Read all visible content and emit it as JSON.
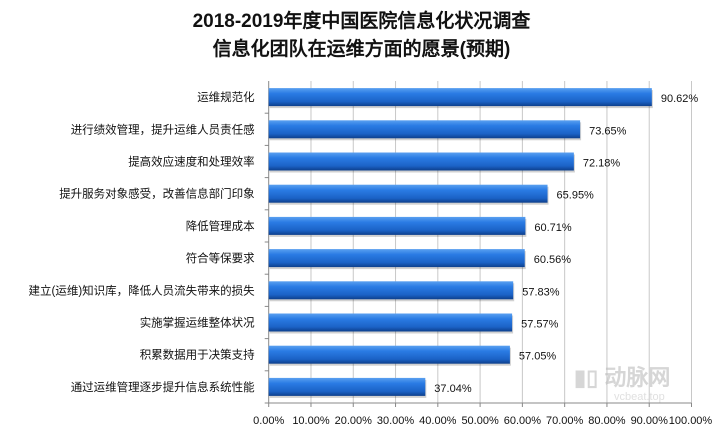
{
  "chart_data": {
    "type": "bar",
    "orientation": "horizontal",
    "title": "2018-2019年度中国医院信息化状况调查",
    "subtitle": "信息化团队在运维方面的愿景(预期)",
    "categories": [
      "运维规范化",
      "进行绩效管理，提升运维人员责任感",
      "提高效应速度和处理效率",
      "提升服务对象感受，改善信息部门印象",
      "降低管理成本",
      "符合等保要求",
      "建立(运维)知识库，降低人员流失带来的损失",
      "实施掌握运维整体状况",
      "积累数据用于决策支持",
      "通过运维管理逐步提升信息系统性能"
    ],
    "values": [
      90.62,
      73.65,
      72.18,
      65.95,
      60.71,
      60.56,
      57.83,
      57.57,
      57.05,
      37.04
    ],
    "data_labels": [
      "90.62%",
      "73.65%",
      "72.18%",
      "65.95%",
      "60.71%",
      "60.56%",
      "57.83%",
      "57.57%",
      "57.05%",
      "37.04%"
    ],
    "xlim": [
      0,
      100
    ],
    "xticks": [
      "0.00%",
      "10.00%",
      "20.00%",
      "30.00%",
      "40.00%",
      "50.00%",
      "60.00%",
      "70.00%",
      "80.00%",
      "90.00%",
      "100.00%"
    ],
    "grid": true,
    "bar_color": "#1f6fd6",
    "legend": "none"
  },
  "watermark": {
    "logo": "动脉网",
    "url": "vcbeat.top"
  }
}
